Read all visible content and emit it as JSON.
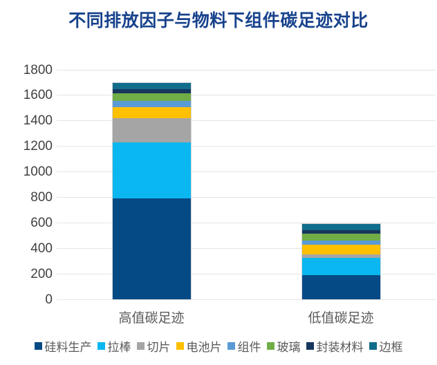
{
  "title": "不同排放因子与物料下组件碳足迹对比",
  "colors": {
    "title_text": "#17428C",
    "grid_line": "#E4E4E4",
    "y_tick_text": "#404040",
    "x_label_text": "#595959",
    "legend_text": "#595959",
    "bar_border": "#D3D6D8",
    "background": "#FFFFFF"
  },
  "chart_data": {
    "type": "bar",
    "stacked": true,
    "title": "不同排放因子与物料下组件碳足迹对比",
    "categories": [
      "高值碳足迹",
      "低值碳足迹"
    ],
    "series": [
      {
        "name": "硅料生产",
        "color": "#064A85",
        "values": [
          790,
          190
        ]
      },
      {
        "name": "拉棒",
        "color": "#0BB7F0",
        "values": [
          440,
          135
        ]
      },
      {
        "name": "切片",
        "color": "#A5A5A5",
        "values": [
          190,
          25
        ]
      },
      {
        "name": "电池片",
        "color": "#FFC000",
        "values": [
          90,
          80
        ]
      },
      {
        "name": "组件",
        "color": "#5B9BD5",
        "values": [
          45,
          30
        ]
      },
      {
        "name": "玻璃",
        "color": "#70AD47",
        "values": [
          60,
          55
        ]
      },
      {
        "name": "封装材料",
        "color": "#17365D",
        "values": [
          35,
          28
        ]
      },
      {
        "name": "边框",
        "color": "#116D8C",
        "values": [
          50,
          50
        ]
      }
    ],
    "totals": [
      1700,
      593
    ],
    "xlabel": "",
    "ylabel": "",
    "ylim": [
      0,
      1800
    ],
    "yticks": [
      0,
      200,
      400,
      600,
      800,
      1000,
      1200,
      1400,
      1600,
      1800
    ],
    "grid": true,
    "legend_position": "bottom"
  }
}
